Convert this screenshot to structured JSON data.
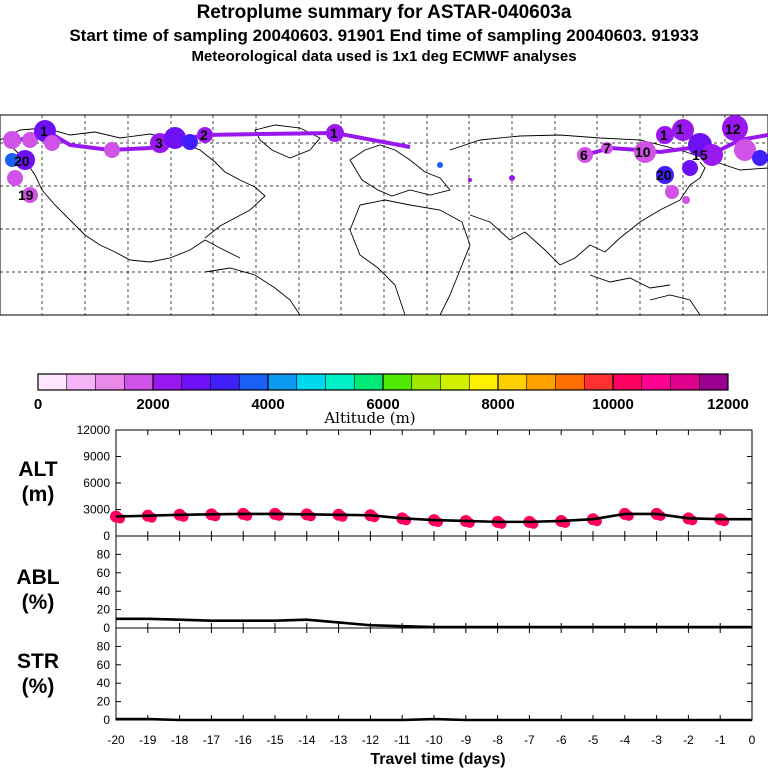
{
  "header": {
    "title": "Retroplume summary for ASTAR-040603a",
    "sampling_line": "Start time of sampling 20040603. 91901     End time of sampling 20040603. 91933",
    "met_line": "Meteorological data used is 1x1 deg ECMWF analyses"
  },
  "colorbar": {
    "label": "Altitude (m)",
    "ticks": [
      "0",
      "2000",
      "4000",
      "6000",
      "8000",
      "10000",
      "12000"
    ],
    "colors": [
      "#ffe6ff",
      "#f7b3f7",
      "#e98ae9",
      "#d152e6",
      "#9a18f0",
      "#6e10f5",
      "#4020f8",
      "#1c5ff5",
      "#0a98f0",
      "#00d8f0",
      "#00f0c8",
      "#00e878",
      "#50e800",
      "#a0e800",
      "#d0f000",
      "#fff000",
      "#ffd000",
      "#ffa000",
      "#ff7000",
      "#ff3030",
      "#ff0060",
      "#ff0090",
      "#e0008e",
      "#9a0090"
    ]
  },
  "map_labels": [
    {
      "text": "1",
      "color": "#6e10f5"
    },
    {
      "text": "20",
      "color": "#6e10f5"
    },
    {
      "text": "19",
      "color": "#d152e6"
    },
    {
      "text": "3",
      "color": "#9a18f0"
    },
    {
      "text": "2",
      "color": "#9a18f0"
    },
    {
      "text": "1",
      "color": "#9a18f0"
    },
    {
      "text": "6",
      "color": "#d152e6"
    },
    {
      "text": "7",
      "color": "#d152e6"
    },
    {
      "text": "10",
      "color": "#d152e6"
    },
    {
      "text": "12",
      "color": "#9a18f0"
    },
    {
      "text": "1",
      "color": "#6e10f5"
    },
    {
      "text": "15",
      "color": "#6e10f5"
    },
    {
      "text": "20",
      "color": "#6e10f5"
    },
    {
      "text": "1",
      "color": "#6e10f5"
    }
  ],
  "chart_data": [
    {
      "type": "line",
      "panel": "ALT",
      "ylabel_line1": "ALT",
      "ylabel_line2": "(m)",
      "ylim": [
        0,
        12000
      ],
      "yticks": [
        "12000",
        "9000",
        "6000",
        "3000",
        "0"
      ],
      "x": [
        -20,
        -19,
        -18,
        -17,
        -16,
        -15,
        -14,
        -13,
        -12,
        -11,
        -10,
        -9,
        -8,
        -7,
        -6,
        -5,
        -4,
        -3,
        -2,
        -1,
        0
      ],
      "values": [
        2200,
        2300,
        2400,
        2450,
        2500,
        2500,
        2450,
        2400,
        2350,
        2000,
        1800,
        1700,
        1600,
        1600,
        1700,
        1900,
        2500,
        2500,
        2000,
        1900,
        1900
      ],
      "marker_color": "#ff0060"
    },
    {
      "type": "line",
      "panel": "ABL",
      "ylabel_line1": "ABL",
      "ylabel_line2": "(%)",
      "ylim": [
        0,
        100
      ],
      "yticks": [
        "80",
        "60",
        "40",
        "20",
        "0"
      ],
      "x": [
        -20,
        -19,
        -18,
        -17,
        -16,
        -15,
        -14,
        -13,
        -12,
        -11,
        -10,
        -9,
        -8,
        -7,
        -6,
        -5,
        -4,
        -3,
        -2,
        -1,
        0
      ],
      "values": [
        10,
        10,
        9,
        8,
        8,
        8,
        9,
        6,
        3,
        2,
        1,
        1,
        1,
        1,
        1,
        1,
        1,
        1,
        1,
        1,
        1
      ]
    },
    {
      "type": "line",
      "panel": "STR",
      "ylabel_line1": "STR",
      "ylabel_line2": "(%)",
      "ylim": [
        0,
        100
      ],
      "yticks": [
        "80",
        "60",
        "40",
        "20",
        "0"
      ],
      "x": [
        -20,
        -19,
        -18,
        -17,
        -16,
        -15,
        -14,
        -13,
        -12,
        -11,
        -10,
        -9,
        -8,
        -7,
        -6,
        -5,
        -4,
        -3,
        -2,
        -1,
        0
      ],
      "values": [
        1,
        1,
        0,
        0,
        0,
        0,
        0,
        0,
        0,
        0,
        1,
        0,
        0,
        0,
        0,
        0,
        0,
        0,
        0,
        0,
        0
      ]
    }
  ],
  "xaxis": {
    "label": "Travel time (days)",
    "ticks": [
      "-20",
      "-19",
      "-18",
      "-17",
      "-16",
      "-15",
      "-14",
      "-13",
      "-12",
      "-11",
      "-10",
      "-9",
      "-8",
      "-7",
      "-6",
      "-5",
      "-4",
      "-3",
      "-2",
      "-1",
      "0"
    ]
  }
}
